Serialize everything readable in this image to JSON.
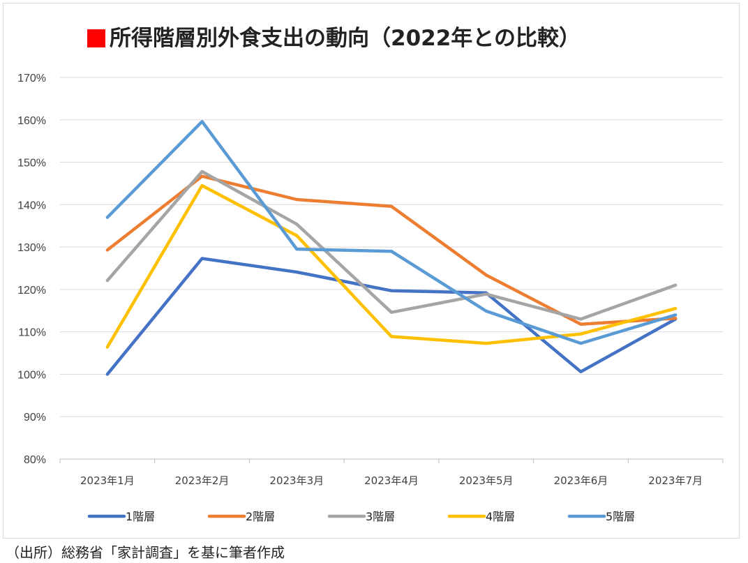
{
  "title": "所得階層別外食支出の動向（2022年との比較）",
  "title_marker_color": "#ff0000",
  "source": "（出所）総務省「家計調査」を基に筆者作成",
  "chart_data": {
    "type": "line",
    "title": "所得階層別外食支出の動向（2022年との比較）",
    "categories": [
      "2023年1月",
      "2023年2月",
      "2023年3月",
      "2023年4月",
      "2023年5月",
      "2023年6月",
      "2023年7月"
    ],
    "ylim": [
      80,
      170
    ],
    "yticks": [
      80,
      90,
      100,
      110,
      120,
      130,
      140,
      150,
      160,
      170
    ],
    "ytick_labels": [
      "80%",
      "90%",
      "100%",
      "110%",
      "120%",
      "130%",
      "140%",
      "150%",
      "160%",
      "170%"
    ],
    "y_unit": "%",
    "grid": true,
    "legend_position": "bottom",
    "series": [
      {
        "name": "1階層",
        "color": "#4472c4",
        "values": [
          100.0,
          127.3,
          124.1,
          119.7,
          119.2,
          100.6,
          113.0
        ]
      },
      {
        "name": "2階層",
        "color": "#ed7d31",
        "values": [
          129.3,
          146.7,
          141.2,
          139.6,
          123.4,
          111.8,
          113.2
        ]
      },
      {
        "name": "3階層",
        "color": "#a5a5a5",
        "values": [
          122.1,
          147.8,
          135.4,
          114.6,
          118.9,
          113.0,
          121.0
        ]
      },
      {
        "name": "4階層",
        "color": "#ffc000",
        "values": [
          106.4,
          144.5,
          132.7,
          108.9,
          107.3,
          109.5,
          115.5
        ]
      },
      {
        "name": "5階層",
        "color": "#5b9bd5",
        "values": [
          137.0,
          159.6,
          129.5,
          129.0,
          114.9,
          107.3,
          114.0
        ]
      }
    ]
  }
}
